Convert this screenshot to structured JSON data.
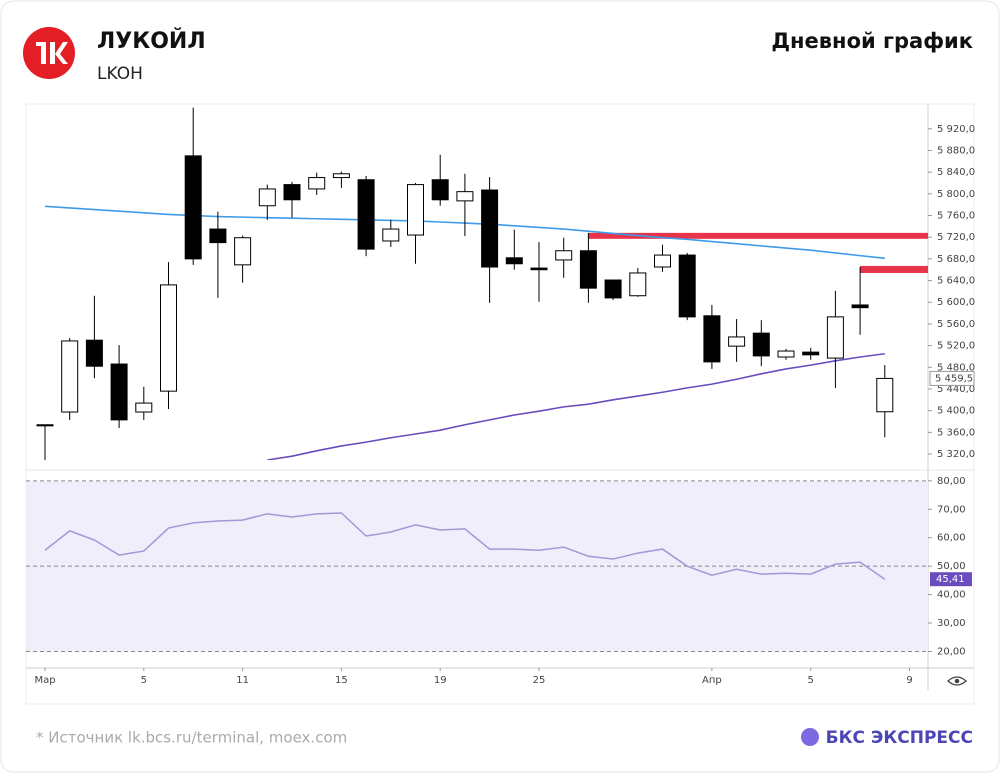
{
  "header": {
    "title": "ЛУКОЙЛ",
    "ticker": "LKOH",
    "chart_name": "Дневной график"
  },
  "chart_data": [
    {
      "type": "candlestick",
      "xticks": [
        {
          "value": 0,
          "label": "Мар"
        },
        {
          "value": 4,
          "label": "5"
        },
        {
          "value": 8,
          "label": "11"
        },
        {
          "value": 12,
          "label": "15"
        },
        {
          "value": 16,
          "label": "19"
        },
        {
          "value": 20,
          "label": "25"
        },
        {
          "value": 27,
          "label": "Апр"
        },
        {
          "value": 31,
          "label": "5"
        },
        {
          "value": 35,
          "label": "9"
        }
      ],
      "open": [
        5374,
        5397.5,
        5530,
        5486,
        5397.5,
        5436,
        5870,
        5735,
        5669,
        5778,
        5817,
        5809,
        5830,
        5826,
        5713,
        5724,
        5826,
        5787,
        5807,
        5682,
        5663,
        5678,
        5695,
        5641,
        5612,
        5665,
        5687,
        5575,
        5519,
        5543,
        5499,
        5508,
        5497,
        5595,
        5398
      ],
      "high": [
        5374,
        5534,
        5612,
        5521,
        5444,
        5674,
        5959,
        5767,
        5723,
        5817,
        5822,
        5839,
        5841,
        5833,
        5752,
        5820,
        5872,
        5837,
        5831,
        5734,
        5711,
        5719,
        5728,
        5641,
        5663,
        5706,
        5691,
        5595,
        5569,
        5567,
        5514,
        5516,
        5621,
        5665,
        5484
      ],
      "low": [
        5309,
        5383,
        5460,
        5368,
        5383,
        5403,
        5669,
        5608,
        5636,
        5752,
        5756,
        5798,
        5811,
        5685,
        5702,
        5671,
        5778,
        5722,
        5599,
        5660,
        5601,
        5645,
        5599,
        5604,
        5610,
        5656,
        5567,
        5477,
        5490,
        5482,
        5494,
        5494,
        5442,
        5540,
        5351
      ],
      "close": [
        5372,
        5528.6,
        5482,
        5383,
        5414,
        5632,
        5680,
        5710,
        5719,
        5809,
        5789,
        5830,
        5837,
        5698,
        5735,
        5817,
        5789,
        5804,
        5665,
        5671,
        5660,
        5695,
        5626,
        5608,
        5654,
        5687,
        5573,
        5490,
        5536,
        5501,
        5510,
        5503,
        5573,
        5590,
        5459.5
      ],
      "last_label": "5 459,5",
      "up_color": "#ffffff",
      "down_color": "#000000",
      "lines": [
        {
          "color": "#3d9be9",
          "values": [
            5777,
            5774,
            5771,
            5768,
            5765,
            5762,
            5760,
            5758,
            5757,
            5756,
            5755,
            5754,
            5753,
            5752,
            5751,
            5750,
            5748,
            5746,
            5744,
            5741,
            5738,
            5735,
            5731,
            5727,
            5723,
            5719,
            5716,
            5712,
            5708,
            5704,
            5700,
            5696,
            5691,
            5686,
            5681
          ]
        },
        {
          "color": "#6a4cbf",
          "values": [
            null,
            null,
            null,
            null,
            null,
            null,
            null,
            null,
            null,
            5309,
            5316,
            5326,
            5335,
            5342,
            5350,
            5357,
            5364,
            5374,
            5383,
            5392,
            5399,
            5407,
            5412,
            5420,
            5427,
            5434,
            5442,
            5449,
            5458,
            5468,
            5477,
            5484,
            5492,
            5499,
            5505
          ]
        }
      ],
      "zones": [
        {
          "from": 5717,
          "to": 5728,
          "start": 22,
          "color": "#e8344a"
        },
        {
          "from": 5654,
          "to": 5667,
          "start": 33,
          "color": "#e8344a"
        }
      ],
      "ylim": [
        5309,
        5962
      ],
      "yticks": [
        {
          "value": 5320,
          "label": "5 320,0"
        },
        {
          "value": 5360,
          "label": "5 360,0"
        },
        {
          "value": 5400,
          "label": "5 400,0"
        },
        {
          "value": 5440,
          "label": "5 440,0"
        },
        {
          "value": 5480,
          "label": "5 480,0"
        },
        {
          "value": 5520,
          "label": "5 520,0"
        },
        {
          "value": 5560,
          "label": "5 560,0"
        },
        {
          "value": 5600,
          "label": "5 600,0"
        },
        {
          "value": 5640,
          "label": "5 640,0"
        },
        {
          "value": 5680,
          "label": "5 680,0"
        },
        {
          "value": 5720,
          "label": "5 720,0"
        },
        {
          "value": 5760,
          "label": "5 760,0"
        },
        {
          "value": 5800,
          "label": "5 800,0"
        },
        {
          "value": 5840,
          "label": "5 840,0"
        },
        {
          "value": 5880,
          "label": "5 880,0"
        },
        {
          "value": 5920,
          "label": "5 920,0"
        }
      ]
    },
    {
      "type": "line",
      "values": [
        55.6,
        62.4,
        59.2,
        53.9,
        55.3,
        63.4,
        65.2,
        65.9,
        66.2,
        68.4,
        67.3,
        68.4,
        68.7,
        60.6,
        62.0,
        64.5,
        62.7,
        63.1,
        56.0,
        56.0,
        55.6,
        56.7,
        53.5,
        52.5,
        54.6,
        56.0,
        50.0,
        46.8,
        48.9,
        47.2,
        47.5,
        47.2,
        50.7,
        51.4,
        45.41
      ],
      "last_label": "45,41",
      "color": "#a397d6",
      "band": [
        20,
        80
      ],
      "band_color": "#f1eefb",
      "levels": [
        80,
        50,
        20
      ],
      "ylim": [
        17,
        81
      ],
      "yticks": [
        {
          "value": 20,
          "label": "20,00"
        },
        {
          "value": 30,
          "label": "30,00"
        },
        {
          "value": 40,
          "label": "40,00"
        },
        {
          "value": 50,
          "label": "50,00"
        },
        {
          "value": 60,
          "label": "60,00"
        },
        {
          "value": 70,
          "label": "70,00"
        },
        {
          "value": 80,
          "label": "80,00"
        }
      ]
    }
  ],
  "footer": {
    "source": "* Источник lk.bcs.ru/terminal, moex.com",
    "brand": "БКС ЭКСПРЕСС"
  }
}
